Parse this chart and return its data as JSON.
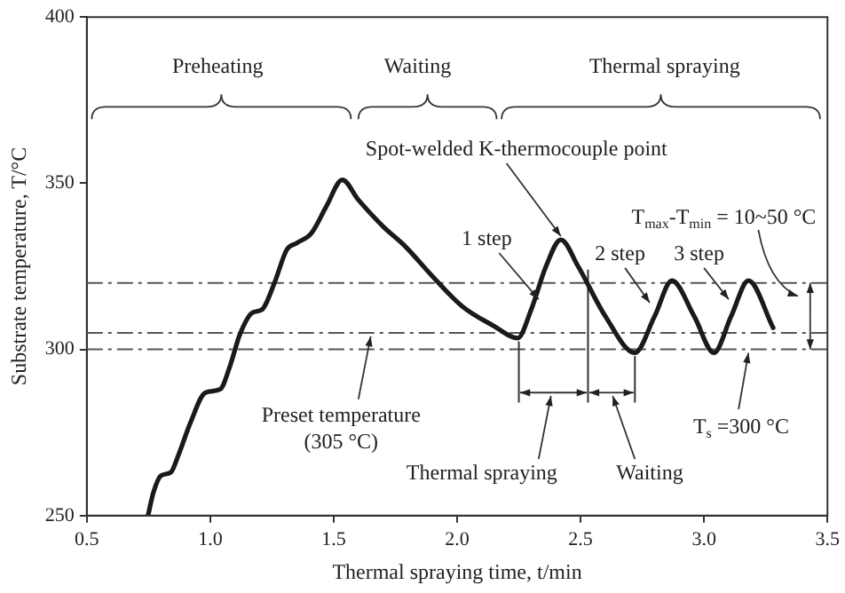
{
  "chart_data": {
    "type": "line",
    "xlabel": "Thermal spraying time, t/min",
    "ylabel": "Substrate temperature, T/°C",
    "xlim": [
      0.5,
      3.5
    ],
    "ylim": [
      250,
      400
    ],
    "xticks": [
      0.5,
      {
        "value": 1,
        "label": "1.0"
      },
      1.5,
      {
        "value": 2,
        "label": "2.0"
      },
      2.5,
      {
        "value": 3,
        "label": "3.0"
      },
      3.5
    ],
    "yticks": [
      250,
      300,
      350,
      400
    ],
    "grid": false,
    "legend": false,
    "marker": "none",
    "line_style": "solid",
    "series": [
      {
        "color": "#1a1a1a",
        "x": [
          0.748,
          0.77,
          0.8,
          0.84,
          0.87,
          0.92,
          0.98,
          1.04,
          1.08,
          1.12,
          1.17,
          1.21,
          1.26,
          1.31,
          1.35,
          1.41,
          1.47,
          1.535,
          1.6,
          1.7,
          1.79,
          1.9,
          2.02,
          2.15,
          2.245,
          2.3,
          2.36,
          2.42,
          2.49,
          2.6,
          2.72,
          2.8,
          2.87,
          2.96,
          3.04,
          3.11,
          3.18,
          3.28
        ],
        "values": [
          250,
          257,
          262,
          263,
          268,
          278,
          287,
          288,
          295,
          304.5,
          311,
          312,
          320,
          330,
          332,
          335,
          343,
          351,
          345,
          337,
          331,
          322,
          313,
          307,
          303.4,
          312,
          325,
          333,
          325,
          310,
          299,
          310,
          320.7,
          310,
          299,
          310,
          320.7,
          306.5
        ]
      }
    ],
    "ref_lines": [
      {
        "axis": "y",
        "value": 305,
        "line_style": "dashed",
        "color": "#555555"
      },
      {
        "axis": "y",
        "value": 300,
        "line_style": "dashed",
        "color": "#555555"
      },
      {
        "axis": "y",
        "value": 320,
        "line_style": "dashed",
        "color": "#555555"
      },
      {
        "axis": "x",
        "value": 2.25,
        "line_style": "solid",
        "color": "#333333"
      },
      {
        "axis": "x",
        "value": 2.53,
        "line_style": "solid",
        "color": "#333333"
      },
      {
        "axis": "x",
        "value": 2.72,
        "line_style": "solid",
        "color": "#333333"
      }
    ],
    "annotations": [
      "Preheating",
      "Waiting",
      "Thermal spraying",
      {
        "text": "Spot-welded K-thermocouple point",
        "x": 2.42,
        "y": 333
      },
      {
        "text": "1 step",
        "x": 2.33,
        "y": 314
      },
      {
        "text": "2 step",
        "x": 2.78,
        "y": 313
      },
      {
        "text": "3 step",
        "x": 3.1,
        "y": 314
      },
      "T$_{max}$-T$_{min}$ = 10~50 °C",
      {
        "text": "Preset temperature\n(305 °C)",
        "x": 1.65,
        "y": 305
      },
      "Thermal spraying",
      "Waiting",
      {
        "text": "T$_{s}$ =300 °C",
        "x": 3.18,
        "y": 300
      }
    ]
  }
}
